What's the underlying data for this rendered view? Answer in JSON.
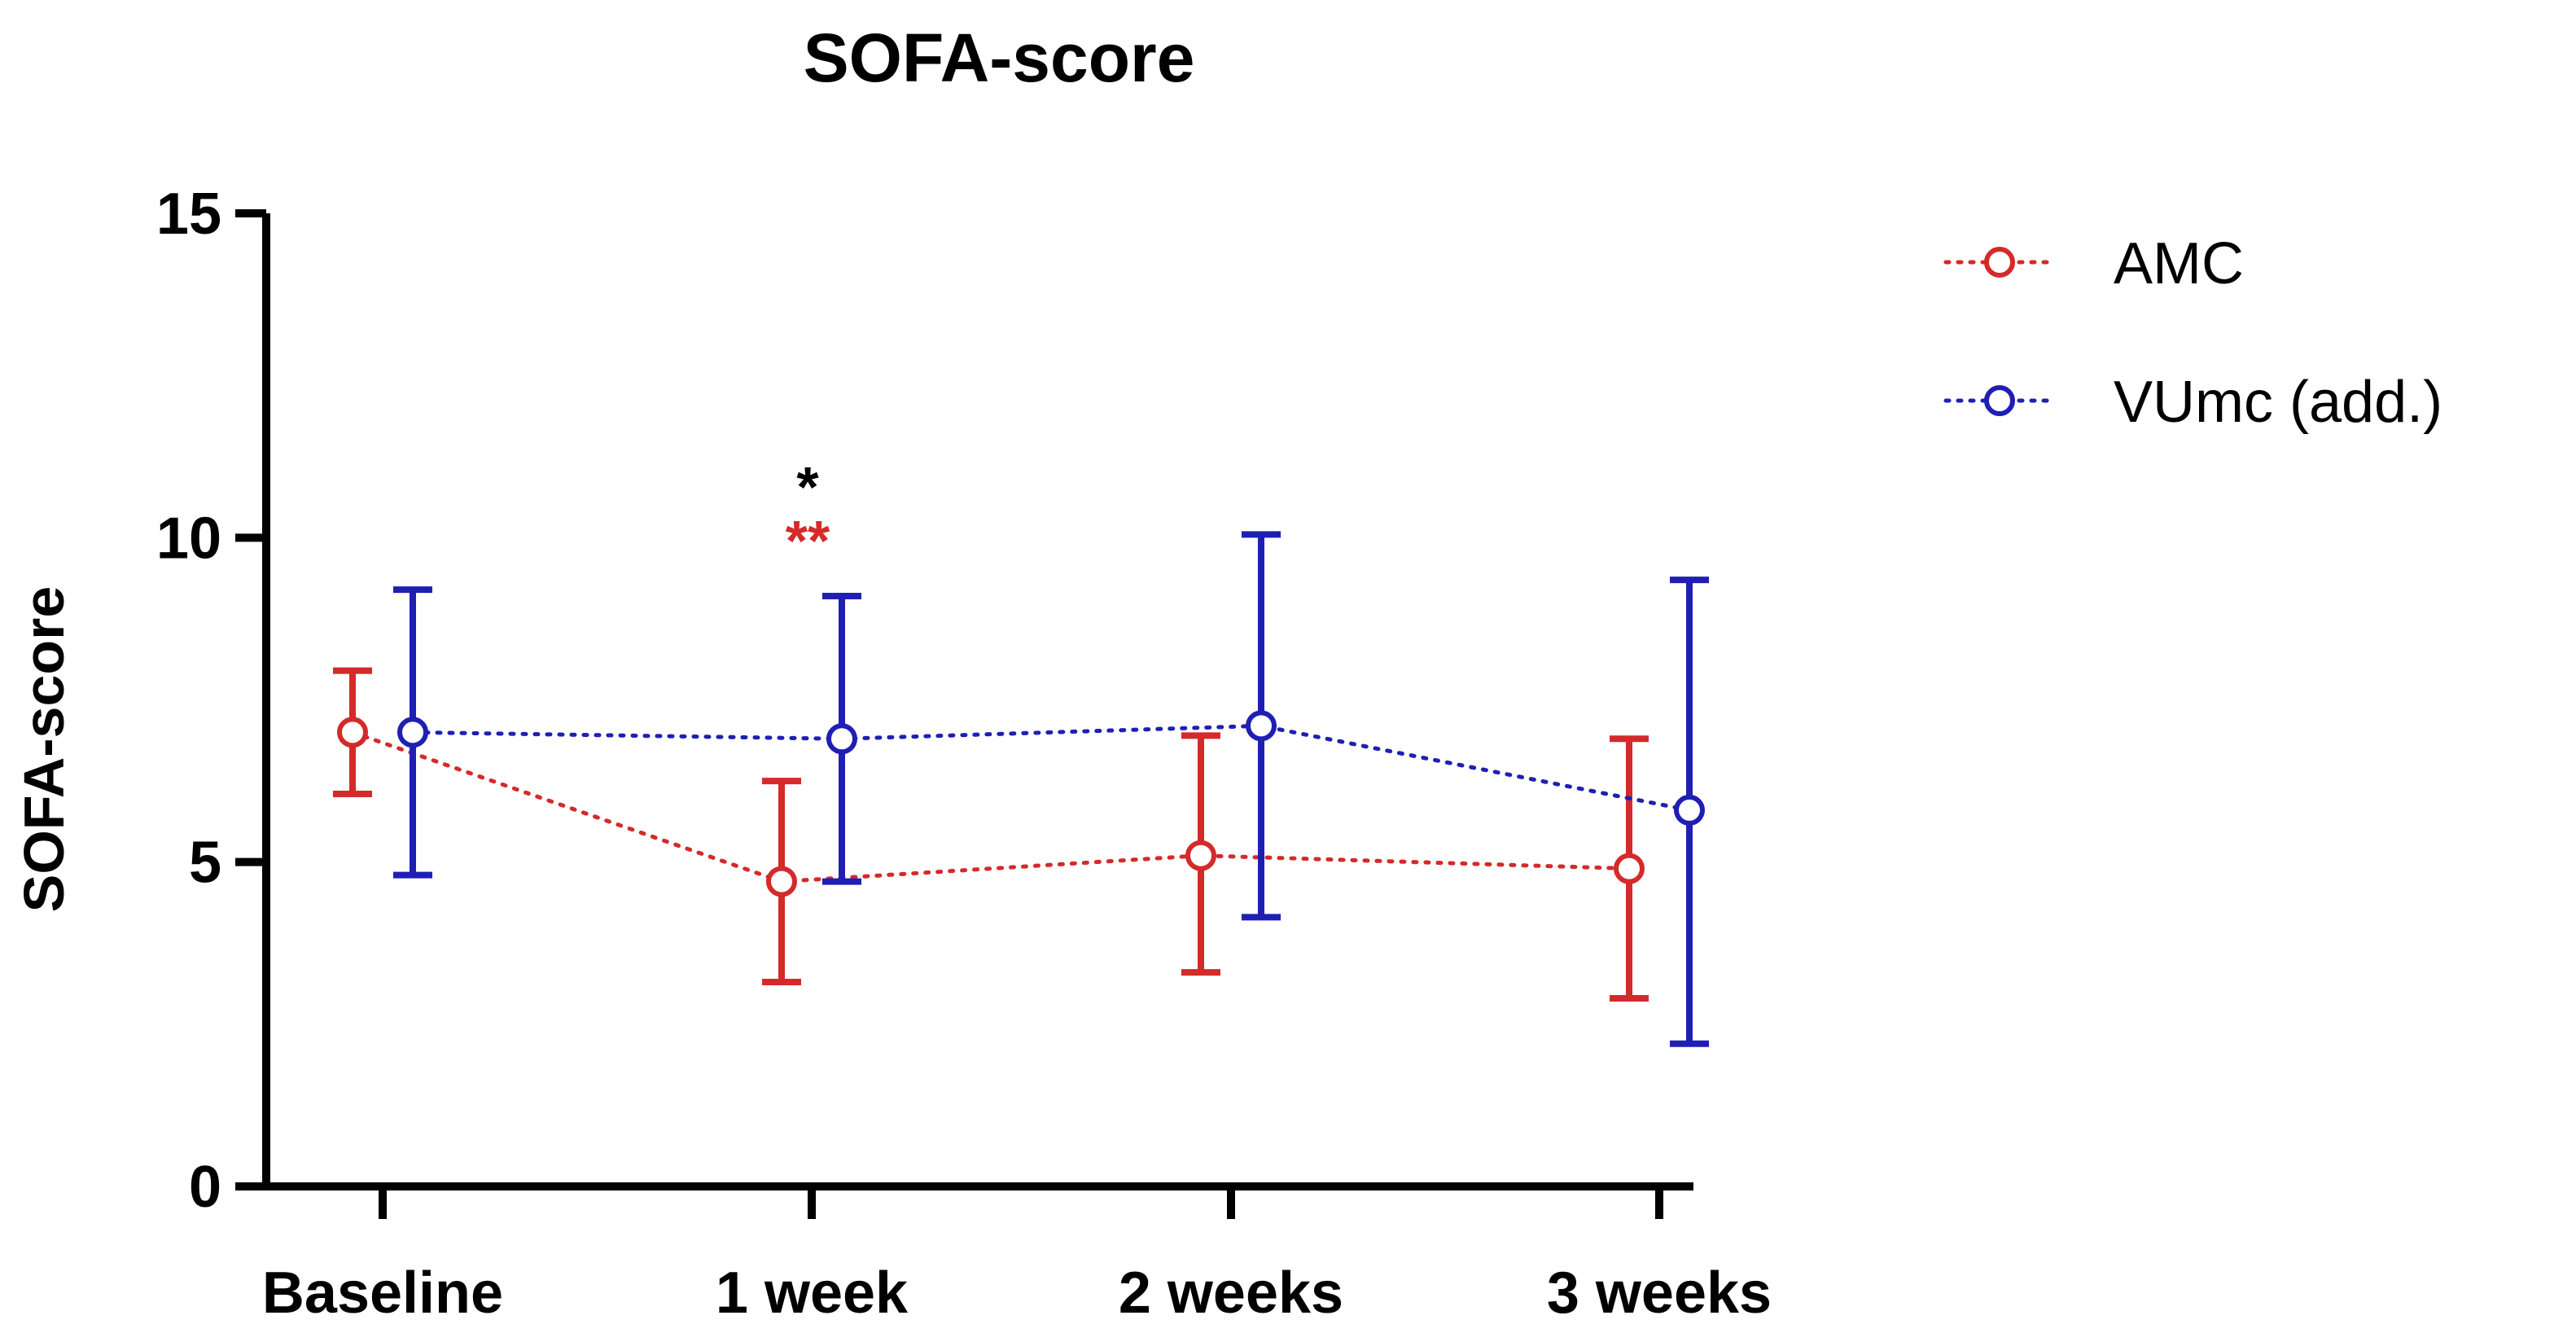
{
  "chart_data": {
    "type": "line",
    "title": "SOFA-score",
    "xlabel": "",
    "ylabel": "SOFA-score",
    "ylim": [
      0,
      15
    ],
    "yticks": [
      0,
      5,
      10,
      15
    ],
    "categories": [
      "Baseline",
      "1 week",
      "2 weeks",
      "3 weeks"
    ],
    "series": [
      {
        "name": "AMC",
        "color": "#d42a2a",
        "values": [
          7.0,
          4.7,
          5.1,
          4.9
        ],
        "err_low": [
          6.05,
          3.15,
          3.3,
          2.9
        ],
        "err_high": [
          7.95,
          6.25,
          6.95,
          6.9
        ]
      },
      {
        "name": "VUmc (add.)",
        "color": "#1f1fb4",
        "values": [
          7.0,
          6.9,
          7.1,
          5.8
        ],
        "err_low": [
          4.8,
          4.7,
          4.15,
          2.2
        ],
        "err_high": [
          9.2,
          9.1,
          10.05,
          9.35
        ]
      }
    ],
    "annotations": [
      {
        "text": "*",
        "category": "1 week",
        "color": "#000000"
      },
      {
        "text": "**",
        "category": "1 week",
        "color": "#d42a2a"
      }
    ],
    "legend_position": "top-right"
  }
}
